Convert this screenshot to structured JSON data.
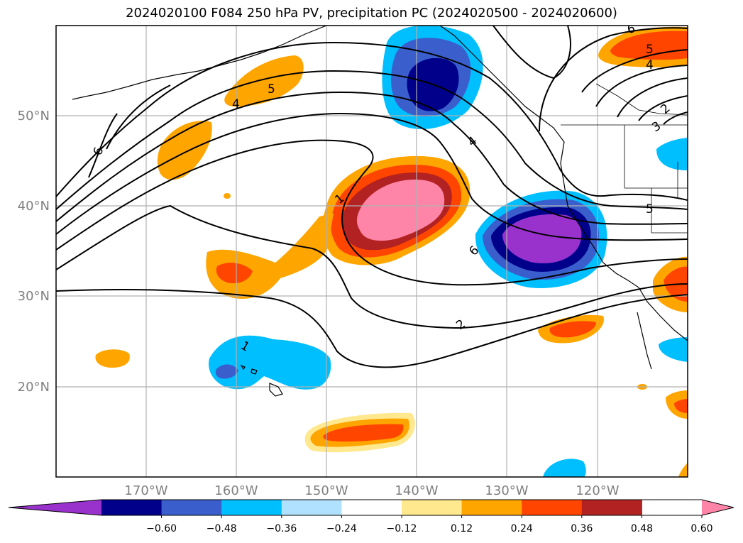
{
  "title": "2024020100 F084 250 hPa PV, precipitation PC (2024020500 - 2024020600)",
  "map": {
    "lat_labels": [
      "50°N",
      "40°N",
      "30°N",
      "20°N"
    ],
    "lon_labels": [
      "170°W",
      "160°W",
      "150°W",
      "140°W",
      "130°W",
      "120°W"
    ],
    "extent": {
      "lon_min": -180,
      "lon_max": -110,
      "lat_min": 10,
      "lat_max": 60
    }
  },
  "colorbar": {
    "ticks": [
      "−0.60",
      "−0.48",
      "−0.36",
      "−0.24",
      "−0.12",
      "0.12",
      "0.24",
      "0.36",
      "0.48",
      "0.60"
    ],
    "colors": [
      "#9932cc",
      "#00008b",
      "#3a5fcd",
      "#00bfff",
      "#b0e2ff",
      "#ffffff",
      "#ffe88e",
      "#ffa500",
      "#ff4500",
      "#b22222",
      "#ff85a8"
    ]
  },
  "pv_contour_labels": [
    "6",
    "5",
    "4",
    "1",
    "4",
    "5",
    "6",
    "1",
    "2",
    "6",
    "3",
    "2",
    "4",
    "5"
  ]
}
